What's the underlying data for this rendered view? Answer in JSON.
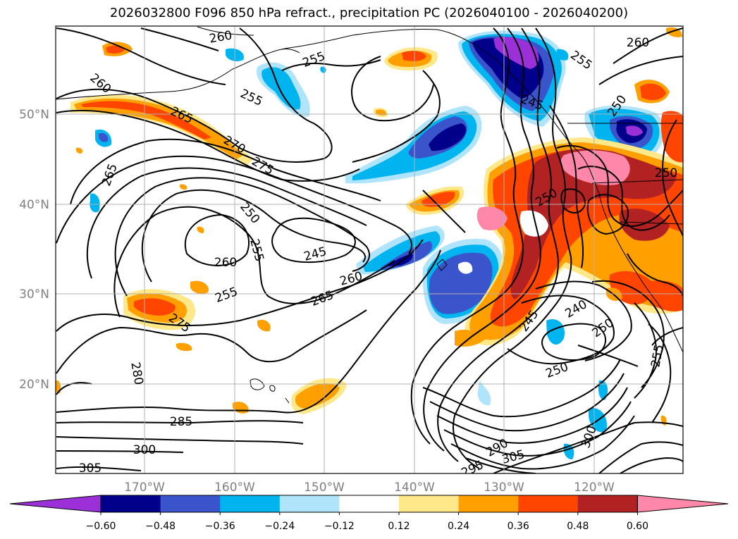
{
  "title": "2026032800 F096 850 hPa refract., precipitation PC (2026040100 - 2026040200)",
  "map": {
    "lon_ticks": [
      "170°W",
      "160°W",
      "150°W",
      "140°W",
      "130°W",
      "120°W"
    ],
    "lat_ticks": [
      "50°N",
      "40°N",
      "30°N",
      "20°N"
    ],
    "contour_labels": [
      "260",
      "255",
      "255",
      "260",
      "265",
      "270",
      "275",
      "265",
      "250",
      "255",
      "245",
      "260",
      "260",
      "265",
      "255",
      "275",
      "280",
      "285",
      "300",
      "305",
      "295",
      "290",
      "305",
      "300",
      "250",
      "245",
      "240",
      "250",
      "250",
      "255",
      "260",
      "255",
      "250",
      "245",
      "250"
    ]
  },
  "colorbar": {
    "ticks": [
      "−0.60",
      "−0.48",
      "−0.36",
      "−0.24",
      "−0.12",
      "0.12",
      "0.24",
      "0.36",
      "0.48",
      "0.60"
    ],
    "colors": [
      "#9b30d8",
      "#00008b",
      "#3a55cc",
      "#00b4f0",
      "#b0e4fa",
      "#ffffff",
      "#ffe88a",
      "#ffa000",
      "#ff4500",
      "#b22222",
      "#ff88aa"
    ]
  }
}
